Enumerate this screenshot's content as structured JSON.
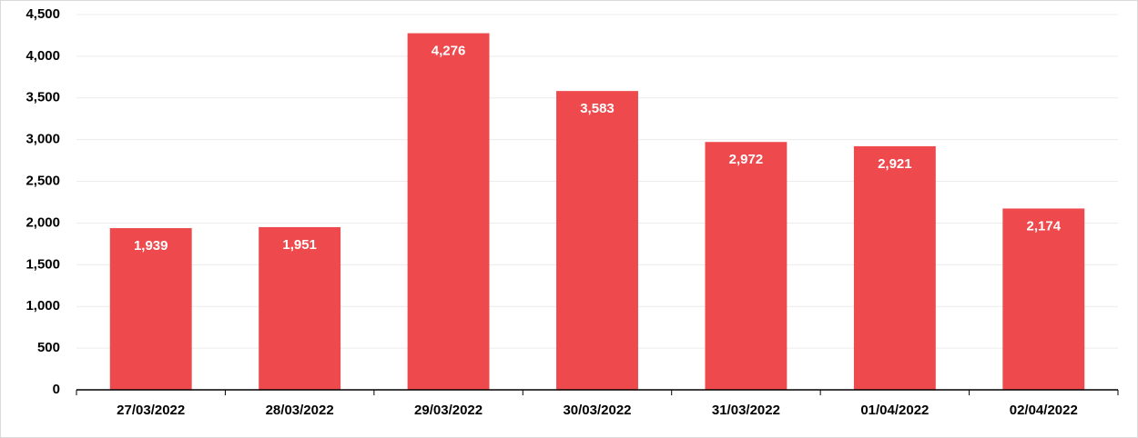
{
  "chart_data": {
    "type": "bar",
    "categories": [
      "27/03/2022",
      "28/03/2022",
      "29/03/2022",
      "30/03/2022",
      "31/03/2022",
      "01/04/2022",
      "02/04/2022"
    ],
    "values": [
      1939,
      1951,
      4276,
      3583,
      2972,
      2921,
      2174
    ],
    "value_labels": [
      "1,939",
      "1,951",
      "4,276",
      "3,583",
      "2,972",
      "2,921",
      "2,174"
    ],
    "color": "#ee494c",
    "ylim": [
      0,
      4500
    ],
    "yticks": [
      0,
      500,
      {
        "value": 1000,
        "label": "1,000"
      },
      {
        "value": 1500,
        "label": "1,500"
      },
      {
        "value": 2000,
        "label": "2,000"
      },
      {
        "value": 2500,
        "label": "2,500"
      },
      {
        "value": 3000,
        "label": "3,000"
      },
      {
        "value": 3500,
        "label": "3,500"
      },
      {
        "value": 4000,
        "label": "4,000"
      },
      {
        "value": 4500,
        "label": "4,500"
      }
    ],
    "grid": true
  }
}
